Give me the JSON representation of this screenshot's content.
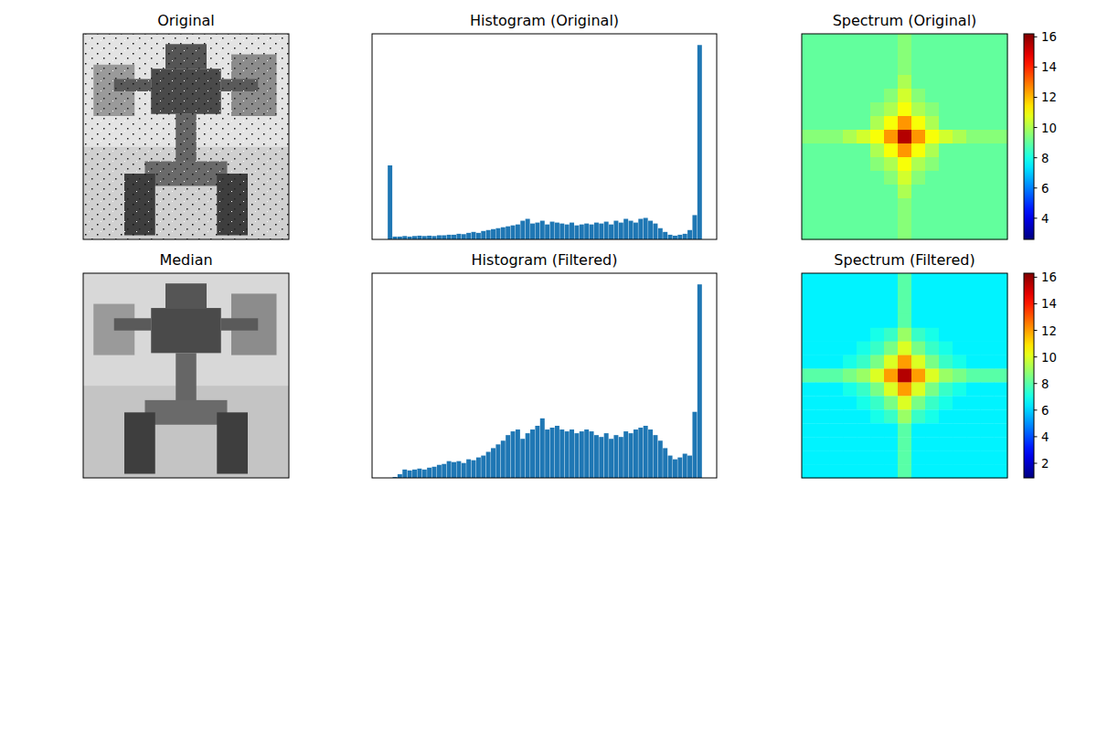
{
  "chart_data": [
    {
      "type": "image",
      "title": "Original",
      "tick_labels": false
    },
    {
      "type": "histogram",
      "title": "Histogram (Original)",
      "tick_labels": false,
      "color": "#1f77b4",
      "xlim": [
        -12.75,
        267.75
      ],
      "ylim": [
        0,
        1100
      ],
      "bins": [
        0,
        4,
        8,
        12,
        16,
        20,
        24,
        28,
        32,
        36,
        40,
        44,
        48,
        52,
        56,
        60,
        64,
        68,
        72,
        76,
        80,
        84,
        88,
        92,
        96,
        100,
        104,
        108,
        112,
        116,
        120,
        124,
        128,
        132,
        136,
        140,
        144,
        148,
        152,
        156,
        160,
        164,
        168,
        172,
        176,
        180,
        184,
        188,
        192,
        196,
        200,
        204,
        208,
        212,
        216,
        220,
        224,
        228,
        232,
        236,
        240,
        244,
        248,
        252,
        256
      ],
      "counts": [
        396,
        15,
        15,
        18,
        15,
        18,
        20,
        18,
        20,
        18,
        22,
        22,
        25,
        25,
        30,
        28,
        35,
        40,
        35,
        45,
        50,
        55,
        60,
        65,
        70,
        75,
        80,
        100,
        110,
        85,
        90,
        100,
        80,
        95,
        90,
        85,
        80,
        90,
        75,
        80,
        85,
        80,
        90,
        85,
        95,
        80,
        100,
        90,
        110,
        100,
        90,
        110,
        115,
        100,
        85,
        60,
        40,
        25,
        20,
        25,
        30,
        50,
        130,
        1040
      ]
    },
    {
      "type": "heatmap",
      "title": "Spectrum (Original)",
      "tick_labels": false,
      "colorbar_range": [
        2.6,
        16.2
      ],
      "colorbar_ticks": [
        4,
        6,
        8,
        10,
        12,
        14,
        16
      ],
      "cells": [
        [
          9,
          9,
          9,
          9,
          9,
          9,
          9,
          9.5,
          9,
          9,
          9,
          9,
          9,
          9,
          9
        ],
        [
          9,
          9,
          9,
          9,
          9,
          9,
          9,
          9.5,
          9,
          9,
          9,
          9,
          9,
          9,
          9
        ],
        [
          9,
          9,
          9,
          9,
          9,
          9,
          9,
          9.5,
          9,
          9,
          9,
          9,
          9,
          9,
          9
        ],
        [
          9,
          9,
          9,
          9,
          9,
          9,
          9,
          10,
          9,
          9,
          9,
          9,
          9,
          9,
          9
        ],
        [
          9,
          9,
          9,
          9,
          9,
          9,
          9.5,
          10.5,
          9.5,
          9,
          9,
          9,
          9,
          9,
          9
        ],
        [
          9,
          9,
          9,
          9,
          9,
          9.5,
          10,
          11,
          10,
          9.5,
          9,
          9,
          9,
          9,
          9
        ],
        [
          9,
          9,
          9,
          9,
          9,
          10,
          11,
          12.5,
          11,
          10,
          9,
          9,
          9,
          9,
          9
        ],
        [
          9.5,
          9.5,
          9.5,
          10,
          10.5,
          11,
          12.5,
          15.5,
          12.5,
          11,
          10.5,
          10,
          9.5,
          9.5,
          9.5
        ],
        [
          9,
          9,
          9,
          9,
          9,
          10,
          11,
          12.5,
          11,
          10,
          9,
          9,
          9,
          9,
          9
        ],
        [
          9,
          9,
          9,
          9,
          9,
          9.5,
          10,
          11,
          10,
          9.5,
          9,
          9,
          9,
          9,
          9
        ],
        [
          9,
          9,
          9,
          9,
          9,
          9,
          9.5,
          10.5,
          9.5,
          9,
          9,
          9,
          9,
          9,
          9
        ],
        [
          9,
          9,
          9,
          9,
          9,
          9,
          9,
          10,
          9,
          9,
          9,
          9,
          9,
          9,
          9
        ],
        [
          9,
          9,
          9,
          9,
          9,
          9,
          9,
          9.5,
          9,
          9,
          9,
          9,
          9,
          9,
          9
        ],
        [
          9,
          9,
          9,
          9,
          9,
          9,
          9,
          9.5,
          9,
          9,
          9,
          9,
          9,
          9,
          9
        ],
        [
          9,
          9,
          9,
          9,
          9,
          9,
          9,
          9.5,
          9,
          9,
          9,
          9,
          9,
          9,
          9
        ]
      ]
    },
    {
      "type": "image",
      "title": "Median",
      "tick_labels": false
    },
    {
      "type": "histogram",
      "title": "Histogram (Filtered)",
      "tick_labels": false,
      "color": "#1f77b4",
      "xlim": [
        -12.75,
        267.75
      ],
      "ylim": [
        0,
        1100
      ],
      "bins": [
        0,
        4,
        8,
        12,
        16,
        20,
        24,
        28,
        32,
        36,
        40,
        44,
        48,
        52,
        56,
        60,
        64,
        68,
        72,
        76,
        80,
        84,
        88,
        92,
        96,
        100,
        104,
        108,
        112,
        116,
        120,
        124,
        128,
        132,
        136,
        140,
        144,
        148,
        152,
        156,
        160,
        164,
        168,
        172,
        176,
        180,
        184,
        188,
        192,
        196,
        200,
        204,
        208,
        212,
        216,
        220,
        224,
        228,
        232,
        236,
        240,
        244,
        248,
        252,
        256
      ],
      "counts": [
        0,
        5,
        20,
        45,
        40,
        45,
        50,
        45,
        55,
        60,
        70,
        75,
        90,
        85,
        90,
        80,
        100,
        95,
        110,
        120,
        140,
        160,
        180,
        200,
        230,
        250,
        260,
        210,
        240,
        260,
        280,
        320,
        260,
        270,
        280,
        260,
        250,
        260,
        240,
        250,
        260,
        250,
        230,
        220,
        240,
        210,
        230,
        220,
        250,
        240,
        260,
        270,
        280,
        260,
        230,
        200,
        160,
        120,
        100,
        110,
        130,
        120,
        355,
        1040
      ]
    },
    {
      "type": "heatmap",
      "title": "Spectrum (Filtered)",
      "tick_labels": false,
      "colorbar_range": [
        0.9,
        16.3
      ],
      "colorbar_ticks": [
        2,
        4,
        6,
        8,
        10,
        12,
        14,
        16
      ],
      "cells": [
        [
          6.5,
          6.5,
          6.5,
          6.5,
          6.5,
          6.5,
          6.5,
          8,
          6.5,
          6.5,
          6.5,
          6.5,
          6.5,
          6.5,
          6.5
        ],
        [
          6.5,
          6.5,
          6.5,
          6.5,
          6.5,
          6.5,
          6.5,
          8,
          6.5,
          6.5,
          6.5,
          6.5,
          6.5,
          6.5,
          6.5
        ],
        [
          6.5,
          6.5,
          6.5,
          6.5,
          6.5,
          6.5,
          6.5,
          8,
          6.5,
          6.5,
          6.5,
          6.5,
          6.5,
          6.5,
          6.5
        ],
        [
          6.5,
          6.5,
          6.5,
          6.5,
          6.5,
          6.5,
          6.5,
          8,
          6.5,
          6.5,
          6.5,
          6.5,
          6.5,
          6.5,
          6.5
        ],
        [
          6.5,
          6.5,
          6.5,
          6.5,
          6.5,
          7,
          7.5,
          9,
          7.5,
          7,
          6.5,
          6.5,
          6.5,
          6.5,
          6.5
        ],
        [
          6.5,
          6.5,
          6.5,
          6.5,
          7,
          7.5,
          8.5,
          10,
          8.5,
          7.5,
          7,
          6.5,
          6.5,
          6.5,
          6.5
        ],
        [
          6.5,
          6.5,
          6.5,
          7,
          7.5,
          8.5,
          10,
          12,
          10,
          8.5,
          7.5,
          7,
          6.5,
          6.5,
          6.5
        ],
        [
          8,
          8,
          8,
          8.5,
          9,
          10,
          12,
          15.5,
          12,
          10,
          9,
          8.5,
          8,
          8,
          8
        ],
        [
          6.5,
          6.5,
          6.5,
          7,
          7.5,
          8.5,
          10,
          12,
          10,
          8.5,
          7.5,
          7,
          6.5,
          6.5,
          6.5
        ],
        [
          6.5,
          6.5,
          6.5,
          6.5,
          7,
          7.5,
          8.5,
          10,
          8.5,
          7.5,
          7,
          6.5,
          6.5,
          6.5,
          6.5
        ],
        [
          6.5,
          6.5,
          6.5,
          6.5,
          6.5,
          7,
          7.5,
          9,
          7.5,
          7,
          6.5,
          6.5,
          6.5,
          6.5,
          6.5
        ],
        [
          6.5,
          6.5,
          6.5,
          6.5,
          6.5,
          6.5,
          6.5,
          8,
          6.5,
          6.5,
          6.5,
          6.5,
          6.5,
          6.5,
          6.5
        ],
        [
          6.5,
          6.5,
          6.5,
          6.5,
          6.5,
          6.5,
          6.5,
          8,
          6.5,
          6.5,
          6.5,
          6.5,
          6.5,
          6.5,
          6.5
        ],
        [
          6.5,
          6.5,
          6.5,
          6.5,
          6.5,
          6.5,
          6.5,
          8,
          6.5,
          6.5,
          6.5,
          6.5,
          6.5,
          6.5,
          6.5
        ],
        [
          6.5,
          6.5,
          6.5,
          6.5,
          6.5,
          6.5,
          6.5,
          8,
          6.5,
          6.5,
          6.5,
          6.5,
          6.5,
          6.5,
          6.5
        ]
      ]
    }
  ]
}
